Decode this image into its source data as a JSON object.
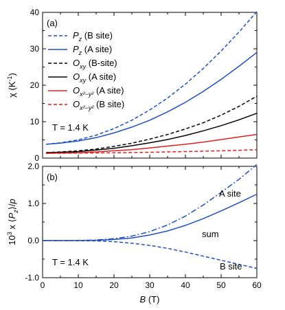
{
  "chart_data": [
    {
      "panel": "(a)",
      "type": "line",
      "ylabel": "χ (K⁻¹)",
      "xlim": [
        0,
        60
      ],
      "ylim": [
        0,
        40
      ],
      "xticks": [
        0,
        10,
        20,
        30,
        40,
        50,
        60
      ],
      "yticks": [
        0,
        10,
        20,
        30,
        40
      ],
      "annotation": "T = 1.4 K",
      "grid": false,
      "legend_position": "top-left",
      "series": [
        {
          "key": "pz_b",
          "name": "Pz (B site)",
          "color": "#1f4fbf",
          "dash": "dashed",
          "x": [
            1,
            5,
            10,
            15,
            20,
            25,
            30,
            35,
            40,
            45,
            50,
            55,
            60
          ],
          "y": [
            3.8,
            4.2,
            5.0,
            6.3,
            8.1,
            10.4,
            13.2,
            16.5,
            20.3,
            24.6,
            29.4,
            34.6,
            40.2
          ]
        },
        {
          "key": "pz_a",
          "name": "Pz (A site)",
          "color": "#1f4fbf",
          "dash": "solid",
          "x": [
            1,
            5,
            10,
            15,
            20,
            25,
            30,
            35,
            40,
            45,
            50,
            55,
            60
          ],
          "y": [
            3.8,
            4.1,
            4.7,
            5.6,
            6.9,
            8.5,
            10.4,
            12.7,
            15.3,
            18.3,
            21.6,
            25.2,
            29.0
          ]
        },
        {
          "key": "oxy_b",
          "name": "Oxy (B-site)",
          "color": "#000000",
          "dash": "dashed",
          "x": [
            1,
            5,
            10,
            15,
            20,
            25,
            30,
            35,
            40,
            45,
            50,
            55,
            60
          ],
          "y": [
            1.5,
            1.7,
            2.0,
            2.5,
            3.2,
            4.1,
            5.2,
            6.5,
            8.0,
            9.7,
            11.8,
            14.2,
            17.0
          ]
        },
        {
          "key": "oxy_a",
          "name": "Oxy (A site)",
          "color": "#000000",
          "dash": "solid",
          "x": [
            1,
            5,
            10,
            15,
            20,
            25,
            30,
            35,
            40,
            45,
            50,
            55,
            60
          ],
          "y": [
            1.5,
            1.6,
            1.8,
            2.2,
            2.7,
            3.4,
            4.2,
            5.1,
            6.2,
            7.5,
            8.9,
            10.5,
            12.3
          ]
        },
        {
          "key": "ox2_a",
          "name": "Ox²−y² (A site)",
          "color": "#e02020",
          "dash": "solid",
          "x": [
            1,
            5,
            10,
            15,
            20,
            25,
            30,
            35,
            40,
            45,
            50,
            55,
            60
          ],
          "y": [
            1.3,
            1.4,
            1.5,
            1.7,
            2.0,
            2.3,
            2.8,
            3.3,
            3.8,
            4.4,
            5.1,
            5.8,
            6.5
          ]
        },
        {
          "key": "ox2_b",
          "name": "Ox²−y² (B site)",
          "color": "#e02020",
          "dash": "dashed",
          "x": [
            1,
            10,
            20,
            30,
            40,
            50,
            60
          ],
          "y": [
            1.3,
            1.35,
            1.45,
            1.6,
            1.8,
            2.0,
            2.3
          ]
        }
      ]
    },
    {
      "panel": "(b)",
      "type": "line",
      "ylabel": "10³ × ⟨Pz⟩/p",
      "xlabel": "B (T)",
      "xlim": [
        0,
        60
      ],
      "ylim": [
        -1.0,
        2.0
      ],
      "xticks": [
        0,
        10,
        20,
        30,
        40,
        50,
        60
      ],
      "yticks": [
        -1.0,
        0.0,
        1.0,
        2.0
      ],
      "annotation": "T = 1.4 K",
      "grid": false,
      "series": [
        {
          "key": "a_site",
          "name": "A site",
          "color": "#1f4fbf",
          "dash": "dashdot",
          "x": [
            0,
            5,
            10,
            15,
            20,
            25,
            30,
            35,
            40,
            45,
            50,
            55,
            60
          ],
          "y": [
            0.0,
            0.0,
            0.003,
            0.015,
            0.05,
            0.12,
            0.24,
            0.42,
            0.66,
            0.96,
            1.3,
            1.65,
            2.05
          ]
        },
        {
          "key": "sum",
          "name": "sum",
          "color": "#1f4fbf",
          "dash": "solid",
          "x": [
            0,
            5,
            10,
            15,
            20,
            25,
            30,
            35,
            40,
            45,
            50,
            55,
            60
          ],
          "y": [
            0.0,
            0.0,
            0.002,
            0.008,
            0.03,
            0.07,
            0.15,
            0.26,
            0.41,
            0.59,
            0.8,
            1.02,
            1.25
          ]
        },
        {
          "key": "b_site",
          "name": "B site",
          "color": "#1f4fbf",
          "dash": "dashed",
          "x": [
            0,
            5,
            10,
            15,
            20,
            25,
            30,
            35,
            40,
            45,
            50,
            55,
            60
          ],
          "y": [
            0.0,
            0.0,
            -0.003,
            -0.01,
            -0.03,
            -0.07,
            -0.13,
            -0.21,
            -0.31,
            -0.42,
            -0.53,
            -0.64,
            -0.75
          ]
        }
      ],
      "curve_labels": [
        {
          "series": "a_site",
          "text": "A site"
        },
        {
          "series": "sum",
          "text": "sum"
        },
        {
          "series": "b_site",
          "text": "B site"
        }
      ]
    }
  ]
}
